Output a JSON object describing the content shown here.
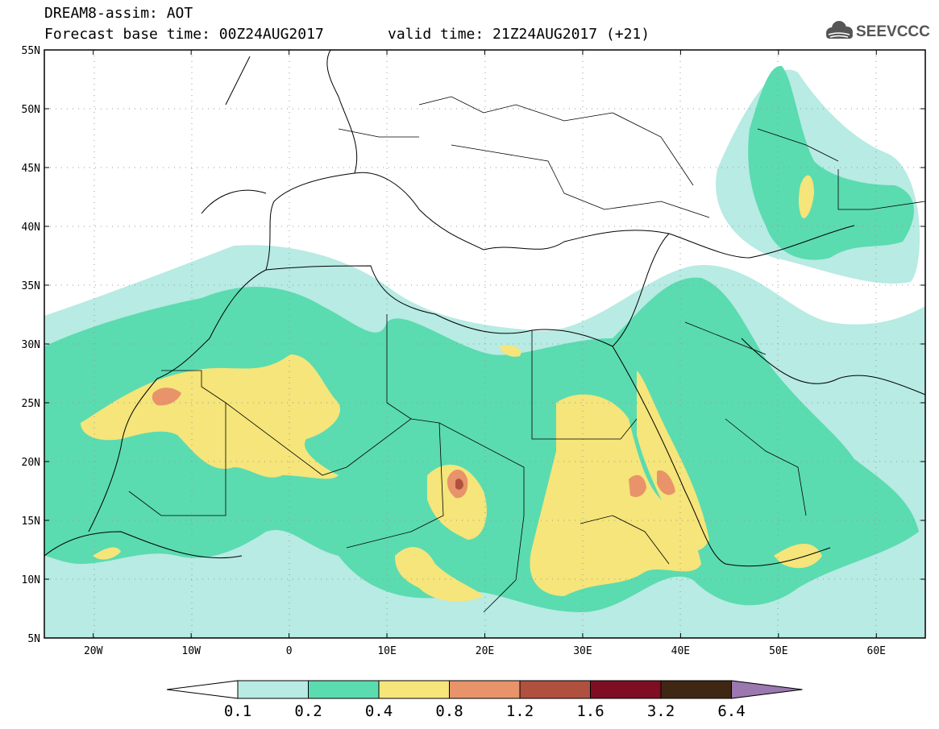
{
  "header": {
    "title": "DREAM8-assim: AOT",
    "base_time": "Forecast base time: 00Z24AUG2017",
    "valid_time": "valid time: 21Z24AUG2017 (+21)"
  },
  "logo": {
    "text": "SEEVCCC",
    "icon": "cloud-icon",
    "color": "#555555"
  },
  "map": {
    "lon_range": [
      -25,
      65
    ],
    "lat_range": [
      5,
      55
    ],
    "lon_ticks": [
      {
        "value": -20,
        "label": "20W"
      },
      {
        "value": -10,
        "label": "10W"
      },
      {
        "value": 0,
        "label": "0"
      },
      {
        "value": 10,
        "label": "10E"
      },
      {
        "value": 20,
        "label": "20E"
      },
      {
        "value": 30,
        "label": "30E"
      },
      {
        "value": 40,
        "label": "40E"
      },
      {
        "value": 50,
        "label": "50E"
      },
      {
        "value": 60,
        "label": "60E"
      }
    ],
    "lat_ticks": [
      {
        "value": 55,
        "label": "55N"
      },
      {
        "value": 50,
        "label": "50N"
      },
      {
        "value": 45,
        "label": "45N"
      },
      {
        "value": 40,
        "label": "40N"
      },
      {
        "value": 35,
        "label": "35N"
      },
      {
        "value": 30,
        "label": "30N"
      },
      {
        "value": 25,
        "label": "25N"
      },
      {
        "value": 20,
        "label": "20N"
      },
      {
        "value": 15,
        "label": "15N"
      },
      {
        "value": 10,
        "label": "10N"
      },
      {
        "value": 5,
        "label": "5N"
      }
    ],
    "grid": true
  },
  "colorbar": {
    "colors": [
      "#b7ebe3",
      "#5bdbb0",
      "#f5e57a",
      "#e8936a",
      "#b0503f",
      "#7e0f23",
      "#3f2714"
    ],
    "low_color": "#ffffff",
    "high_color": "#9b78b0",
    "labels": [
      "0.1",
      "0.2",
      "0.4",
      "0.8",
      "1.2",
      "1.6",
      "3.2",
      "6.4"
    ]
  }
}
